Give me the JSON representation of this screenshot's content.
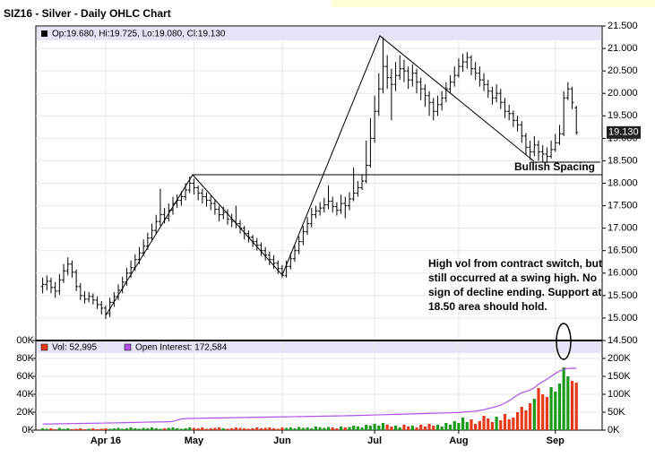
{
  "chart_data": {
    "type": "ohlc",
    "title": "SIZ16 - Silver - Daily OHLC Chart",
    "legend_text": "Op:19.680, Hi:19.725, Lo:19.080, Cl:19.130",
    "last_price_label": "19.130",
    "color": "#000000",
    "categories": [
      null,
      null,
      null,
      null,
      null,
      null,
      null,
      null,
      null,
      null,
      null,
      null,
      null,
      null,
      null,
      "Apr 16",
      null,
      null,
      null,
      null,
      null,
      null,
      null,
      null,
      null,
      null,
      null,
      null,
      null,
      null,
      null,
      null,
      null,
      null,
      null,
      null,
      "May",
      null,
      null,
      null,
      null,
      null,
      null,
      null,
      null,
      null,
      null,
      null,
      null,
      null,
      null,
      null,
      null,
      null,
      null,
      null,
      null,
      "Jun",
      null,
      null,
      null,
      null,
      null,
      null,
      null,
      null,
      null,
      null,
      null,
      null,
      null,
      null,
      null,
      null,
      null,
      null,
      null,
      null,
      null,
      "Jul",
      null,
      null,
      null,
      null,
      null,
      null,
      null,
      null,
      null,
      null,
      null,
      null,
      null,
      null,
      null,
      null,
      null,
      null,
      null,
      "Aug",
      null,
      null,
      null,
      null,
      null,
      null,
      null,
      null,
      null,
      null,
      null,
      null,
      null,
      null,
      null,
      null,
      null,
      null,
      null,
      null,
      null,
      null,
      "Sep",
      null,
      null,
      null,
      null,
      null
    ],
    "open": [
      15.7,
      15.75,
      15.82,
      15.68,
      15.6,
      15.85,
      16.05,
      16.2,
      16.02,
      15.7,
      15.5,
      15.42,
      15.48,
      15.4,
      15.3,
      15.22,
      15.1,
      15.35,
      15.48,
      15.62,
      15.8,
      16.0,
      16.12,
      16.3,
      16.45,
      16.6,
      16.78,
      16.95,
      17.15,
      17.3,
      17.22,
      17.4,
      17.55,
      17.62,
      17.7,
      17.85,
      18.0,
      17.9,
      17.78,
      17.7,
      17.62,
      17.55,
      17.42,
      17.3,
      17.35,
      17.2,
      17.15,
      17.1,
      17.0,
      16.88,
      16.8,
      16.7,
      16.62,
      16.5,
      16.4,
      16.3,
      16.22,
      16.1,
      15.95,
      16.15,
      16.32,
      16.5,
      16.7,
      16.92,
      17.1,
      17.3,
      17.38,
      17.45,
      17.52,
      17.6,
      17.48,
      17.4,
      17.55,
      17.5,
      17.65,
      17.78,
      17.9,
      18.05,
      18.4,
      19.0,
      19.6,
      20.1,
      20.6,
      20.35,
      20.2,
      20.4,
      20.55,
      20.5,
      20.3,
      20.45,
      20.25,
      20.1,
      19.95,
      19.8,
      19.6,
      19.75,
      19.9,
      20.1,
      20.25,
      20.4,
      20.6,
      20.7,
      20.8,
      20.55,
      20.45,
      20.3,
      20.2,
      20.05,
      19.9,
      20.0,
      19.8,
      19.6,
      19.55,
      19.4,
      19.3,
      19.05,
      18.8,
      18.7,
      18.85,
      18.7,
      18.65,
      18.6,
      18.75,
      18.9,
      19.1,
      19.9,
      20.1,
      19.68
    ],
    "high": [
      15.9,
      15.95,
      15.9,
      15.8,
      15.98,
      16.2,
      16.35,
      16.28,
      16.08,
      15.78,
      15.6,
      15.58,
      15.55,
      15.48,
      15.38,
      15.28,
      15.45,
      15.58,
      15.75,
      15.92,
      16.12,
      16.28,
      16.42,
      16.58,
      16.75,
      16.9,
      17.1,
      17.3,
      17.88,
      17.45,
      17.55,
      17.7,
      17.75,
      17.82,
      18.0,
      18.15,
      18.1,
      17.95,
      17.88,
      17.8,
      17.72,
      17.62,
      17.5,
      17.48,
      17.42,
      17.32,
      17.5,
      17.18,
      17.05,
      16.95,
      16.85,
      16.78,
      16.68,
      16.58,
      16.48,
      16.4,
      16.28,
      16.18,
      16.28,
      16.45,
      16.62,
      16.82,
      17.05,
      17.25,
      17.45,
      17.5,
      17.58,
      17.68,
      17.95,
      17.7,
      17.58,
      17.75,
      17.7,
      17.8,
      18.35,
      18.05,
      18.2,
      18.95,
      19.45,
      19.95,
      20.45,
      21.25,
      20.85,
      20.55,
      20.7,
      20.85,
      20.75,
      20.6,
      20.65,
      20.55,
      20.35,
      20.2,
      20.05,
      19.9,
      19.95,
      20.05,
      20.25,
      20.4,
      20.6,
      20.78,
      20.88,
      20.92,
      20.85,
      20.7,
      20.6,
      20.45,
      20.3,
      20.15,
      20.2,
      20.1,
      19.9,
      19.75,
      19.62,
      19.5,
      19.38,
      19.12,
      18.95,
      19.05,
      18.95,
      18.85,
      18.8,
      18.95,
      19.1,
      19.3,
      20.05,
      20.25,
      20.15,
      19.725
    ],
    "low": [
      15.55,
      15.62,
      15.55,
      15.45,
      15.52,
      15.78,
      15.95,
      15.9,
      15.6,
      15.4,
      15.32,
      15.35,
      15.3,
      15.2,
      15.08,
      14.98,
      15.02,
      15.25,
      15.4,
      15.55,
      15.72,
      15.9,
      16.05,
      16.2,
      16.38,
      16.52,
      16.7,
      16.88,
      17.05,
      17.1,
      17.15,
      17.3,
      17.45,
      17.5,
      17.62,
      17.78,
      17.75,
      17.62,
      17.55,
      17.48,
      17.4,
      17.3,
      17.15,
      17.2,
      17.08,
      17.02,
      17.0,
      16.88,
      16.75,
      16.68,
      16.58,
      16.5,
      16.38,
      16.28,
      16.18,
      16.1,
      15.98,
      15.9,
      15.9,
      16.08,
      16.25,
      16.42,
      16.62,
      16.85,
      17.02,
      17.22,
      17.28,
      17.35,
      17.42,
      17.35,
      17.28,
      17.32,
      17.22,
      17.4,
      17.6,
      17.7,
      17.85,
      18.0,
      18.35,
      18.9,
      19.5,
      20.0,
      20.1,
      19.4,
      20.05,
      20.3,
      20.25,
      20.1,
      20.15,
      20.0,
      19.85,
      19.7,
      19.5,
      19.4,
      19.5,
      19.62,
      19.8,
      20.0,
      20.15,
      20.35,
      20.48,
      20.55,
      20.4,
      20.3,
      20.15,
      20.05,
      19.9,
      19.75,
      19.8,
      19.65,
      19.45,
      19.4,
      19.25,
      19.15,
      18.9,
      18.62,
      18.52,
      18.6,
      18.5,
      18.48,
      18.45,
      18.55,
      18.7,
      18.85,
      19.05,
      19.85,
      19.65,
      19.08
    ],
    "close": [
      15.75,
      15.82,
      15.68,
      15.6,
      15.85,
      16.05,
      16.2,
      16.02,
      15.7,
      15.5,
      15.42,
      15.48,
      15.4,
      15.3,
      15.22,
      15.1,
      15.35,
      15.48,
      15.62,
      15.8,
      16.0,
      16.12,
      16.3,
      16.45,
      16.6,
      16.78,
      16.95,
      17.15,
      17.3,
      17.22,
      17.4,
      17.55,
      17.62,
      17.7,
      17.85,
      18.0,
      17.9,
      17.78,
      17.7,
      17.62,
      17.55,
      17.42,
      17.3,
      17.35,
      17.2,
      17.15,
      17.1,
      17.0,
      16.88,
      16.8,
      16.7,
      16.62,
      16.5,
      16.4,
      16.3,
      16.22,
      16.1,
      15.95,
      16.15,
      16.32,
      16.5,
      16.7,
      16.92,
      17.1,
      17.3,
      17.38,
      17.45,
      17.52,
      17.6,
      17.48,
      17.4,
      17.55,
      17.5,
      17.65,
      17.78,
      17.9,
      18.05,
      18.4,
      19.0,
      19.6,
      20.1,
      20.6,
      20.35,
      20.2,
      20.4,
      20.55,
      20.5,
      20.3,
      20.45,
      20.25,
      20.1,
      19.95,
      19.8,
      19.6,
      19.75,
      19.9,
      20.1,
      20.25,
      20.4,
      20.6,
      20.7,
      20.8,
      20.55,
      20.45,
      20.3,
      20.2,
      20.05,
      19.9,
      20.0,
      19.8,
      19.6,
      19.55,
      19.4,
      19.3,
      19.05,
      18.8,
      18.7,
      18.85,
      18.7,
      18.65,
      18.6,
      18.75,
      18.9,
      19.1,
      19.9,
      20.1,
      19.8,
      19.13
    ],
    "ylim": [
      14.5,
      21.5
    ],
    "yticks": [
      {
        "value": 14.5,
        "label": "14.500"
      },
      {
        "value": 15,
        "label": "15.000"
      },
      {
        "value": 15.5,
        "label": "15.500"
      },
      {
        "value": 16,
        "label": "16.000"
      },
      {
        "value": 16.5,
        "label": "16.500"
      },
      {
        "value": 17,
        "label": "17.000"
      },
      {
        "value": 17.5,
        "label": "17.500"
      },
      {
        "value": 18,
        "label": "18.000"
      },
      {
        "value": 18.5,
        "label": "18.500"
      },
      {
        "value": 19,
        "label": "19.000"
      },
      {
        "value": 19.5,
        "label": "19.500"
      },
      {
        "value": 20,
        "label": "20.000"
      },
      {
        "value": 20.5,
        "label": "20.500"
      },
      {
        "value": 21,
        "label": "21.000"
      },
      {
        "value": 21.5,
        "label": "21.500"
      }
    ],
    "grid": true,
    "annotations": [
      "Bullish Spacing",
      "High vol from contract switch, but",
      "still occurred at a swing high.  No",
      "sign of decline ending. Support at",
      "18.50 area should hold."
    ],
    "volume": {
      "type": "bar",
      "legend_text": "Vol: 52,995",
      "up_color": "#1a9a1a",
      "down_color": "#e8381a",
      "values": [
        2,
        1.5,
        2,
        1,
        2.5,
        1.5,
        2,
        1,
        1.5,
        2,
        1,
        1.5,
        2,
        1,
        1.5,
        2,
        1.5,
        2,
        2.5,
        1.5,
        2,
        3,
        2,
        1.5,
        2.5,
        2,
        3,
        2,
        1.5,
        2,
        2.5,
        3,
        2,
        1.5,
        2,
        3,
        2.5,
        2,
        3,
        1.5,
        2,
        2.5,
        3,
        2,
        1.5,
        2,
        3,
        2.5,
        2,
        1.5,
        2,
        3,
        2,
        2.5,
        3,
        2,
        1.5,
        3,
        2.5,
        3,
        2,
        3.5,
        2.5,
        3,
        2,
        4,
        3,
        2.5,
        3.5,
        3,
        2,
        4,
        3,
        3.5,
        5,
        4,
        3,
        6,
        5,
        7,
        5,
        8,
        6,
        4,
        5,
        3,
        6,
        4,
        5,
        3,
        6,
        4,
        7,
        5,
        6,
        4,
        8,
        6,
        10,
        8,
        14,
        9,
        12,
        7,
        10,
        16,
        13,
        9,
        15,
        11,
        18,
        12,
        14,
        20,
        26,
        22,
        30,
        35,
        47,
        40,
        37,
        48,
        43,
        52,
        70,
        60,
        55,
        52.995
      ],
      "ylim": [
        0,
        100
      ],
      "yticks": [
        {
          "value": 0,
          "label": "0K"
        },
        {
          "value": 20,
          "label": "20K"
        },
        {
          "value": 40,
          "label": "40K"
        },
        {
          "value": 60,
          "label": "60K"
        },
        {
          "value": 80,
          "label": "80K"
        },
        {
          "value": 100,
          "label": "00K"
        }
      ]
    },
    "open_interest": {
      "type": "line",
      "legend_text": "Open Interest: 172,584",
      "color": "#b050e8",
      "axis": "y2",
      "values": [
        17,
        17.2,
        17.4,
        17.5,
        17.8,
        18,
        18.2,
        18.3,
        18.5,
        18.7,
        18.8,
        19,
        19.2,
        19.4,
        19.5,
        19.8,
        20,
        20.2,
        20.5,
        20.7,
        21,
        21.2,
        21.5,
        21.7,
        22,
        22.3,
        22.5,
        22.8,
        23,
        23.2,
        23.5,
        24,
        28,
        31,
        32,
        32.5,
        32.8,
        33,
        33.2,
        33.4,
        33.6,
        33.8,
        34,
        34.2,
        34.4,
        34.6,
        34.8,
        35,
        35.2,
        35.4,
        35.6,
        35.8,
        36,
        36.2,
        36.4,
        36.6,
        36.8,
        37,
        37.2,
        37.4,
        37.6,
        37.8,
        38,
        38.2,
        38.4,
        38.6,
        38.8,
        39,
        39.2,
        39.4,
        39.6,
        39.8,
        40,
        40.3,
        40.6,
        41,
        41.3,
        41.6,
        42,
        42.3,
        42.6,
        43,
        43.3,
        43.6,
        44,
        44.3,
        44.6,
        45,
        45.3,
        45.6,
        46,
        46.3,
        46.6,
        47,
        47.3,
        47.6,
        48,
        48.3,
        48.6,
        49,
        50,
        51,
        52,
        53,
        55,
        57,
        60,
        63,
        66,
        70,
        75,
        82,
        90,
        98,
        104,
        108,
        112,
        118,
        128,
        135,
        142,
        150,
        158,
        165,
        170,
        172,
        172.5,
        172.584
      ],
      "y2lim": [
        0,
        250
      ],
      "y2ticks": [
        {
          "value": 0,
          "label": "0K"
        },
        {
          "value": 50,
          "label": "50K"
        },
        {
          "value": 100,
          "label": "100K"
        },
        {
          "value": 150,
          "label": "150K"
        },
        {
          "value": 200,
          "label": "200K"
        }
      ]
    }
  }
}
